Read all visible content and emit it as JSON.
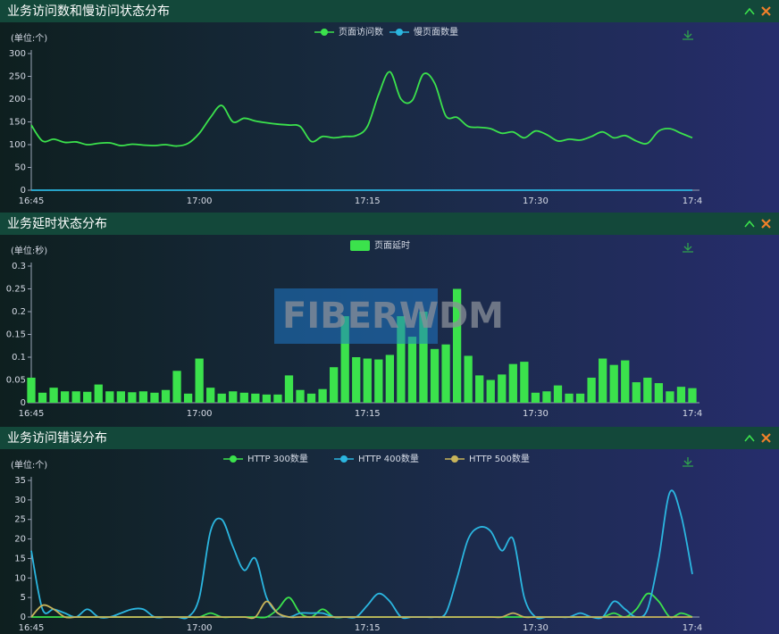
{
  "chart_data": [
    {
      "type": "line",
      "title": "业务访问数和慢访问状态分布",
      "unit_label": "(单位:个)",
      "categories": [
        "16:45",
        null,
        null,
        null,
        null,
        null,
        null,
        null,
        null,
        null,
        null,
        null,
        null,
        null,
        null,
        "17:00",
        null,
        null,
        null,
        null,
        null,
        null,
        null,
        null,
        null,
        null,
        null,
        null,
        null,
        null,
        "17:15",
        null,
        null,
        null,
        null,
        null,
        null,
        null,
        null,
        null,
        null,
        null,
        null,
        null,
        null,
        "17:30",
        null,
        null,
        null,
        null,
        null,
        null,
        null,
        null,
        null,
        null,
        null,
        null,
        null,
        "17:4"
      ],
      "series": [
        {
          "name": "页面访问数",
          "color": "#3be24c",
          "values": [
            143,
            108,
            112,
            105,
            106,
            100,
            103,
            104,
            98,
            101,
            99,
            98,
            100,
            97,
            103,
            125,
            160,
            186,
            150,
            158,
            152,
            148,
            145,
            143,
            140,
            107,
            118,
            115,
            118,
            120,
            140,
            210,
            260,
            200,
            197,
            255,
            235,
            163,
            160,
            140,
            138,
            135,
            125,
            128,
            115,
            130,
            122,
            108,
            112,
            110,
            118,
            128,
            115,
            120,
            108,
            103,
            130,
            135,
            125,
            115
          ]
        },
        {
          "name": "慢页面数量",
          "color": "#2bb6e0",
          "values": [
            0,
            0,
            0,
            0,
            0,
            0,
            0,
            0,
            0,
            0,
            0,
            0,
            0,
            0,
            0,
            0,
            0,
            0,
            0,
            0,
            0,
            0,
            0,
            0,
            0,
            0,
            0,
            0,
            0,
            0,
            0,
            0,
            0,
            0,
            0,
            0,
            0,
            0,
            0,
            0,
            0,
            0,
            0,
            0,
            0,
            0,
            0,
            0,
            0,
            0,
            0,
            0,
            0,
            0,
            0,
            0,
            0,
            0,
            0,
            0
          ]
        }
      ],
      "ylim": [
        0,
        300
      ],
      "yticks": [
        0,
        50,
        100,
        150,
        200,
        250,
        300
      ]
    },
    {
      "type": "bar",
      "title": "业务延时状态分布",
      "unit_label": "(单位:秒)",
      "categories": [
        "16:45",
        null,
        null,
        null,
        null,
        null,
        null,
        null,
        null,
        null,
        null,
        null,
        null,
        null,
        null,
        "17:00",
        null,
        null,
        null,
        null,
        null,
        null,
        null,
        null,
        null,
        null,
        null,
        null,
        null,
        null,
        "17:15",
        null,
        null,
        null,
        null,
        null,
        null,
        null,
        null,
        null,
        null,
        null,
        null,
        null,
        null,
        "17:30",
        null,
        null,
        null,
        null,
        null,
        null,
        null,
        null,
        null,
        null,
        null,
        null,
        null,
        "17:4"
      ],
      "series": [
        {
          "name": "页面延时",
          "color": "#3be24c",
          "values": [
            0.055,
            0.022,
            0.033,
            0.025,
            0.025,
            0.024,
            0.04,
            0.025,
            0.025,
            0.023,
            0.025,
            0.022,
            0.028,
            0.07,
            0.02,
            0.097,
            0.033,
            0.02,
            0.025,
            0.022,
            0.02,
            0.018,
            0.018,
            0.06,
            0.028,
            0.02,
            0.03,
            0.078,
            0.19,
            0.1,
            0.097,
            0.095,
            0.105,
            0.19,
            0.145,
            0.2,
            0.118,
            0.128,
            0.25,
            0.103,
            0.06,
            0.05,
            0.062,
            0.085,
            0.09,
            0.022,
            0.025,
            0.038,
            0.02,
            0.02,
            0.055,
            0.097,
            0.083,
            0.093,
            0.045,
            0.055,
            0.043,
            0.025,
            0.035,
            0.032
          ]
        }
      ],
      "ylim": [
        0,
        0.3
      ],
      "yticks": [
        0,
        0.05,
        0.1,
        0.15,
        0.2,
        0.25,
        0.3
      ]
    },
    {
      "type": "line",
      "title": "业务访问错误分布",
      "unit_label": "(单位:个)",
      "categories": [
        "16:45",
        null,
        null,
        null,
        null,
        null,
        null,
        null,
        null,
        null,
        null,
        null,
        null,
        null,
        null,
        "17:00",
        null,
        null,
        null,
        null,
        null,
        null,
        null,
        null,
        null,
        null,
        null,
        null,
        null,
        null,
        "17:15",
        null,
        null,
        null,
        null,
        null,
        null,
        null,
        null,
        null,
        null,
        null,
        null,
        null,
        null,
        "17:30",
        null,
        null,
        null,
        null,
        null,
        null,
        null,
        null,
        null,
        null,
        null,
        null,
        null,
        "17:4"
      ],
      "series": [
        {
          "name": "HTTP 300数量",
          "color": "#3be24c",
          "values": [
            0,
            0,
            0,
            0,
            0,
            0,
            0,
            0,
            0,
            0,
            0,
            0,
            0,
            0,
            0,
            0,
            1,
            0,
            0,
            0,
            0,
            0,
            2,
            5,
            1,
            0,
            2,
            0,
            0,
            0,
            0,
            0,
            0,
            0,
            0,
            0,
            0,
            0,
            0,
            0,
            0,
            0,
            0,
            0,
            0,
            0,
            0,
            0,
            0,
            0,
            0,
            0,
            1,
            0,
            2,
            6,
            4,
            0,
            1,
            0
          ]
        },
        {
          "name": "HTTP 400数量",
          "color": "#2bb6e0",
          "values": [
            17,
            2,
            2,
            1,
            0,
            2,
            0,
            0,
            1,
            2,
            2,
            0,
            0,
            0,
            0,
            5,
            22,
            25,
            18,
            12,
            15,
            5,
            1,
            0,
            1,
            1,
            1,
            0,
            0,
            0,
            3,
            6,
            4,
            0,
            0,
            0,
            0,
            1,
            10,
            20,
            23,
            22,
            17,
            20,
            5,
            0,
            0,
            0,
            0,
            1,
            0,
            0,
            4,
            2,
            0,
            2,
            15,
            32,
            26,
            11
          ]
        },
        {
          "name": "HTTP 500数量",
          "color": "#c8b45a",
          "values": [
            0,
            3,
            2,
            0,
            0,
            0,
            0,
            0,
            0,
            0,
            0,
            0,
            0,
            0,
            0,
            0,
            0,
            0,
            0,
            0,
            0,
            4,
            1,
            0,
            0,
            0,
            0,
            0,
            0,
            0,
            0,
            0,
            0,
            0,
            0,
            0,
            0,
            0,
            0,
            0,
            0,
            0,
            0,
            1,
            0,
            0,
            0,
            0,
            0,
            0,
            0,
            0,
            0,
            0,
            0,
            0,
            0,
            0,
            0,
            0
          ]
        }
      ],
      "ylim": [
        0,
        35
      ],
      "yticks": [
        0,
        5,
        10,
        15,
        20,
        25,
        30,
        35
      ]
    }
  ],
  "watermark": "FIBERWDM"
}
